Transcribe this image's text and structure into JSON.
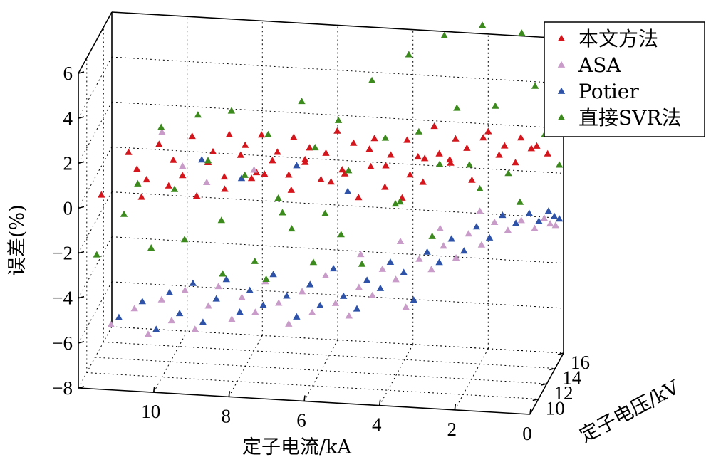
{
  "chart_data": {
    "type": "scatter",
    "projection": "3d",
    "title": "",
    "xlabel": "定子电流/kA",
    "ylabel": "定子电压/kV",
    "zlabel": "误差(%)",
    "xlim": [
      0,
      12
    ],
    "ylim": [
      8,
      16
    ],
    "zlim": [
      -8,
      6
    ],
    "xticks": [
      "10",
      "8",
      "6",
      "4",
      "2",
      "0"
    ],
    "yticks": [
      "10",
      "12",
      "14",
      "16"
    ],
    "zticks": [
      "6",
      "4",
      "2",
      "0",
      "−2",
      "−4",
      "−6",
      "−8"
    ],
    "grid": true,
    "legend_position": "top-right",
    "marker": "triangle",
    "series": [
      {
        "name": "本文方法",
        "color": "#d4161c",
        "points": [
          [
            11.5,
            9.0,
            0.3
          ],
          [
            10.8,
            9.2,
            2.2
          ],
          [
            10.6,
            9.4,
            1.4
          ],
          [
            10.5,
            9.6,
            0.1
          ],
          [
            10.3,
            9.0,
            1.1
          ],
          [
            10.0,
            9.3,
            2.6
          ],
          [
            9.8,
            9.8,
            0.6
          ],
          [
            9.6,
            9.1,
            2.0
          ],
          [
            9.4,
            9.5,
            1.2
          ],
          [
            9.2,
            10.0,
            2.8
          ],
          [
            9.0,
            9.3,
            0.4
          ],
          [
            8.8,
            10.2,
            1.6
          ],
          [
            8.6,
            9.6,
            2.3
          ],
          [
            8.4,
            10.5,
            0.9
          ],
          [
            8.2,
            9.9,
            3.0
          ],
          [
            8.0,
            10.8,
            1.8
          ],
          [
            7.8,
            10.1,
            2.5
          ],
          [
            7.6,
            11.0,
            1.0
          ],
          [
            7.4,
            10.4,
            2.9
          ],
          [
            7.2,
            11.2,
            1.5
          ],
          [
            7.0,
            10.6,
            2.1
          ],
          [
            6.8,
            11.5,
            0.8
          ],
          [
            6.6,
            10.9,
            2.7
          ],
          [
            6.4,
            11.8,
            1.3
          ],
          [
            6.2,
            11.1,
            2.2
          ],
          [
            6.0,
            12.0,
            0.5
          ],
          [
            5.8,
            11.4,
            1.9
          ],
          [
            5.6,
            12.3,
            2.6
          ],
          [
            5.4,
            11.7,
            1.1
          ],
          [
            5.2,
            12.6,
            2.0
          ],
          [
            5.0,
            12.0,
            -0.2
          ],
          [
            4.8,
            12.8,
            1.7
          ],
          [
            4.6,
            12.2,
            2.4
          ],
          [
            4.4,
            13.1,
            0.9
          ],
          [
            4.2,
            12.5,
            1.6
          ],
          [
            4.0,
            13.4,
            -0.6
          ],
          [
            3.8,
            12.8,
            2.2
          ],
          [
            3.6,
            13.6,
            1.2
          ],
          [
            3.4,
            13.0,
            0.3
          ],
          [
            3.2,
            13.9,
            2.5
          ],
          [
            3.0,
            13.3,
            1.5
          ],
          [
            2.8,
            14.2,
            0.8
          ],
          [
            2.6,
            13.6,
            2.1
          ],
          [
            2.4,
            14.5,
            1.4
          ],
          [
            2.2,
            13.9,
            0.2
          ],
          [
            2.0,
            14.8,
            1.8
          ],
          [
            1.8,
            14.2,
            2.3
          ],
          [
            1.6,
            15.0,
            1.0
          ],
          [
            1.4,
            14.5,
            1.6
          ],
          [
            1.2,
            15.3,
            0.6
          ],
          [
            1.0,
            14.8,
            1.9
          ],
          [
            0.8,
            15.5,
            1.2
          ],
          [
            0.6,
            15.0,
            1.5
          ],
          [
            0.4,
            15.8,
            0.9
          ],
          [
            7.9,
            12.5,
            0.2
          ],
          [
            6.9,
            13.0,
            -0.4
          ],
          [
            5.9,
            13.5,
            -0.1
          ],
          [
            4.9,
            14.0,
            0.5
          ],
          [
            3.9,
            14.4,
            0.1
          ],
          [
            2.9,
            14.9,
            0.7
          ],
          [
            8.5,
            11.5,
            0.0
          ],
          [
            7.5,
            12.0,
            0.6
          ],
          [
            6.5,
            12.7,
            1.1
          ],
          [
            5.5,
            13.2,
            0.4
          ],
          [
            4.5,
            13.8,
            -0.3
          ],
          [
            3.5,
            14.3,
            0.9
          ]
        ]
      },
      {
        "name": "ASA",
        "color": "#c99bc9",
        "points": [
          [
            11.2,
            8.6,
            -5.3
          ],
          [
            10.6,
            8.8,
            -4.6
          ],
          [
            10.2,
            8.5,
            -5.6
          ],
          [
            9.9,
            9.0,
            -4.2
          ],
          [
            9.6,
            8.7,
            -5.0
          ],
          [
            9.3,
            9.2,
            -3.8
          ],
          [
            9.0,
            8.9,
            -5.4
          ],
          [
            8.7,
            9.4,
            -4.5
          ],
          [
            8.4,
            9.1,
            -3.5
          ],
          [
            8.1,
            9.6,
            -5.1
          ],
          [
            7.8,
            9.3,
            -4.0
          ],
          [
            7.5,
            9.8,
            -4.8
          ],
          [
            7.2,
            9.5,
            -3.3
          ],
          [
            6.9,
            10.0,
            -4.4
          ],
          [
            6.6,
            9.7,
            -5.2
          ],
          [
            6.3,
            10.2,
            -3.9
          ],
          [
            6.0,
            9.9,
            -4.7
          ],
          [
            5.7,
            10.4,
            -3.2
          ],
          [
            5.4,
            10.1,
            -4.3
          ],
          [
            5.1,
            10.6,
            -5.0
          ],
          [
            4.8,
            10.3,
            -3.6
          ],
          [
            4.5,
            10.8,
            -4.1
          ],
          [
            4.2,
            10.5,
            -2.8
          ],
          [
            3.9,
            11.0,
            -3.4
          ],
          [
            3.6,
            10.7,
            -4.5
          ],
          [
            3.3,
            11.2,
            -2.5
          ],
          [
            3.0,
            11.4,
            -3.0
          ],
          [
            2.7,
            11.6,
            -2.0
          ],
          [
            2.4,
            11.9,
            -2.6
          ],
          [
            2.1,
            12.2,
            -1.6
          ],
          [
            1.8,
            12.6,
            -2.2
          ],
          [
            1.5,
            13.0,
            -1.3
          ],
          [
            1.2,
            13.5,
            -1.8
          ],
          [
            0.9,
            14.0,
            -1.5
          ],
          [
            0.6,
            14.5,
            -2.0
          ],
          [
            0.4,
            15.0,
            -1.7
          ],
          [
            0.3,
            15.5,
            -2.1
          ],
          [
            0.2,
            15.9,
            -2.3
          ],
          [
            5.0,
            12.5,
            -2.9
          ],
          [
            4.0,
            13.0,
            -2.4
          ],
          [
            3.0,
            13.5,
            -1.9
          ],
          [
            2.0,
            14.0,
            -1.2
          ],
          [
            10.0,
            10.0,
            2.9
          ],
          [
            9.5,
            10.4,
            1.3
          ],
          [
            8.9,
            10.8,
            0.5
          ],
          [
            7.7,
            11.3,
            1.0
          ]
        ]
      },
      {
        "name": "Potier",
        "color": "#2d52a8",
        "points": [
          [
            11.0,
            8.7,
            -5.0
          ],
          [
            10.4,
            8.9,
            -4.3
          ],
          [
            10.0,
            8.6,
            -5.4
          ],
          [
            9.7,
            9.1,
            -3.9
          ],
          [
            9.4,
            8.8,
            -4.7
          ],
          [
            9.1,
            9.3,
            -3.5
          ],
          [
            8.8,
            9.0,
            -5.1
          ],
          [
            8.5,
            9.5,
            -4.2
          ],
          [
            8.2,
            9.2,
            -3.2
          ],
          [
            7.9,
            9.7,
            -4.8
          ],
          [
            7.6,
            9.4,
            -3.7
          ],
          [
            7.3,
            9.9,
            -4.5
          ],
          [
            7.0,
            9.6,
            -3.0
          ],
          [
            6.7,
            10.1,
            -4.1
          ],
          [
            6.4,
            9.8,
            -4.9
          ],
          [
            6.1,
            10.3,
            -3.6
          ],
          [
            5.8,
            10.0,
            -4.4
          ],
          [
            5.5,
            10.5,
            -2.9
          ],
          [
            5.2,
            10.2,
            -4.0
          ],
          [
            4.9,
            10.7,
            -4.7
          ],
          [
            4.6,
            10.4,
            -3.3
          ],
          [
            4.3,
            10.9,
            -3.8
          ],
          [
            4.0,
            10.6,
            -2.5
          ],
          [
            3.7,
            11.1,
            -3.1
          ],
          [
            3.4,
            10.8,
            -4.2
          ],
          [
            3.1,
            11.3,
            -2.2
          ],
          [
            2.8,
            11.5,
            -2.7
          ],
          [
            2.5,
            11.7,
            -1.7
          ],
          [
            2.2,
            12.0,
            -2.3
          ],
          [
            1.9,
            12.3,
            -1.3
          ],
          [
            1.6,
            12.7,
            -1.9
          ],
          [
            1.3,
            13.1,
            -1.0
          ],
          [
            1.0,
            13.6,
            -1.5
          ],
          [
            0.7,
            14.1,
            -1.2
          ],
          [
            0.5,
            14.6,
            -1.7
          ],
          [
            0.3,
            15.1,
            -1.4
          ],
          [
            0.2,
            15.6,
            -1.8
          ],
          [
            0.1,
            15.9,
            -2.0
          ],
          [
            9.0,
            10.5,
            1.6
          ],
          [
            8.0,
            11.0,
            0.7
          ],
          [
            6.6,
            11.6,
            1.2
          ],
          [
            5.3,
            12.1,
            0.0
          ]
        ]
      },
      {
        "name": "直接SVR法",
        "color": "#3c8a1e",
        "points": [
          [
            11.6,
            8.8,
            -2.3
          ],
          [
            10.9,
            9.0,
            -0.5
          ],
          [
            10.5,
            8.7,
            1.0
          ],
          [
            10.2,
            9.2,
            -2.0
          ],
          [
            9.9,
            8.9,
            3.5
          ],
          [
            9.6,
            9.4,
            0.6
          ],
          [
            9.3,
            9.1,
            -1.5
          ],
          [
            9.0,
            9.6,
            3.9
          ],
          [
            8.7,
            9.3,
            2.0
          ],
          [
            8.4,
            9.8,
            -0.8
          ],
          [
            8.1,
            9.5,
            4.2
          ],
          [
            7.8,
            10.0,
            1.2
          ],
          [
            7.5,
            9.7,
            -2.5
          ],
          [
            7.2,
            10.2,
            3.0
          ],
          [
            6.9,
            9.9,
            0.3
          ],
          [
            6.6,
            10.4,
            -1.2
          ],
          [
            6.3,
            10.1,
            4.6
          ],
          [
            6.0,
            10.6,
            2.4
          ],
          [
            5.7,
            10.3,
            -0.4
          ],
          [
            5.4,
            10.8,
            3.6
          ],
          [
            5.1,
            10.5,
            1.5
          ],
          [
            4.8,
            11.0,
            -2.8
          ],
          [
            4.5,
            10.7,
            5.5
          ],
          [
            4.2,
            11.2,
            2.8
          ],
          [
            3.9,
            10.9,
            0.0
          ],
          [
            3.6,
            11.4,
            6.5
          ],
          [
            3.3,
            11.1,
            3.2
          ],
          [
            3.0,
            11.6,
            -1.6
          ],
          [
            2.7,
            11.8,
            7.3
          ],
          [
            2.4,
            12.1,
            4.0
          ],
          [
            2.1,
            12.4,
            1.4
          ],
          [
            1.8,
            12.8,
            7.5
          ],
          [
            1.5,
            13.2,
            3.8
          ],
          [
            1.2,
            13.6,
            0.7
          ],
          [
            0.9,
            14.1,
            6.8
          ],
          [
            0.6,
            14.6,
            4.3
          ],
          [
            0.4,
            15.1,
            2.0
          ],
          [
            0.2,
            15.6,
            5.9
          ],
          [
            0.1,
            15.9,
            0.4
          ],
          [
            7.0,
            11.8,
            -1.0
          ],
          [
            5.5,
            12.3,
            -2.0
          ],
          [
            4.0,
            12.9,
            -0.6
          ],
          [
            3.0,
            13.4,
            1.0
          ],
          [
            2.0,
            14.0,
            -0.2
          ],
          [
            1.0,
            14.6,
            -0.9
          ],
          [
            8.5,
            11.0,
            -3.6
          ],
          [
            7.4,
            11.5,
            -3.9
          ],
          [
            6.2,
            12.0,
            -3.2
          ]
        ]
      }
    ]
  }
}
